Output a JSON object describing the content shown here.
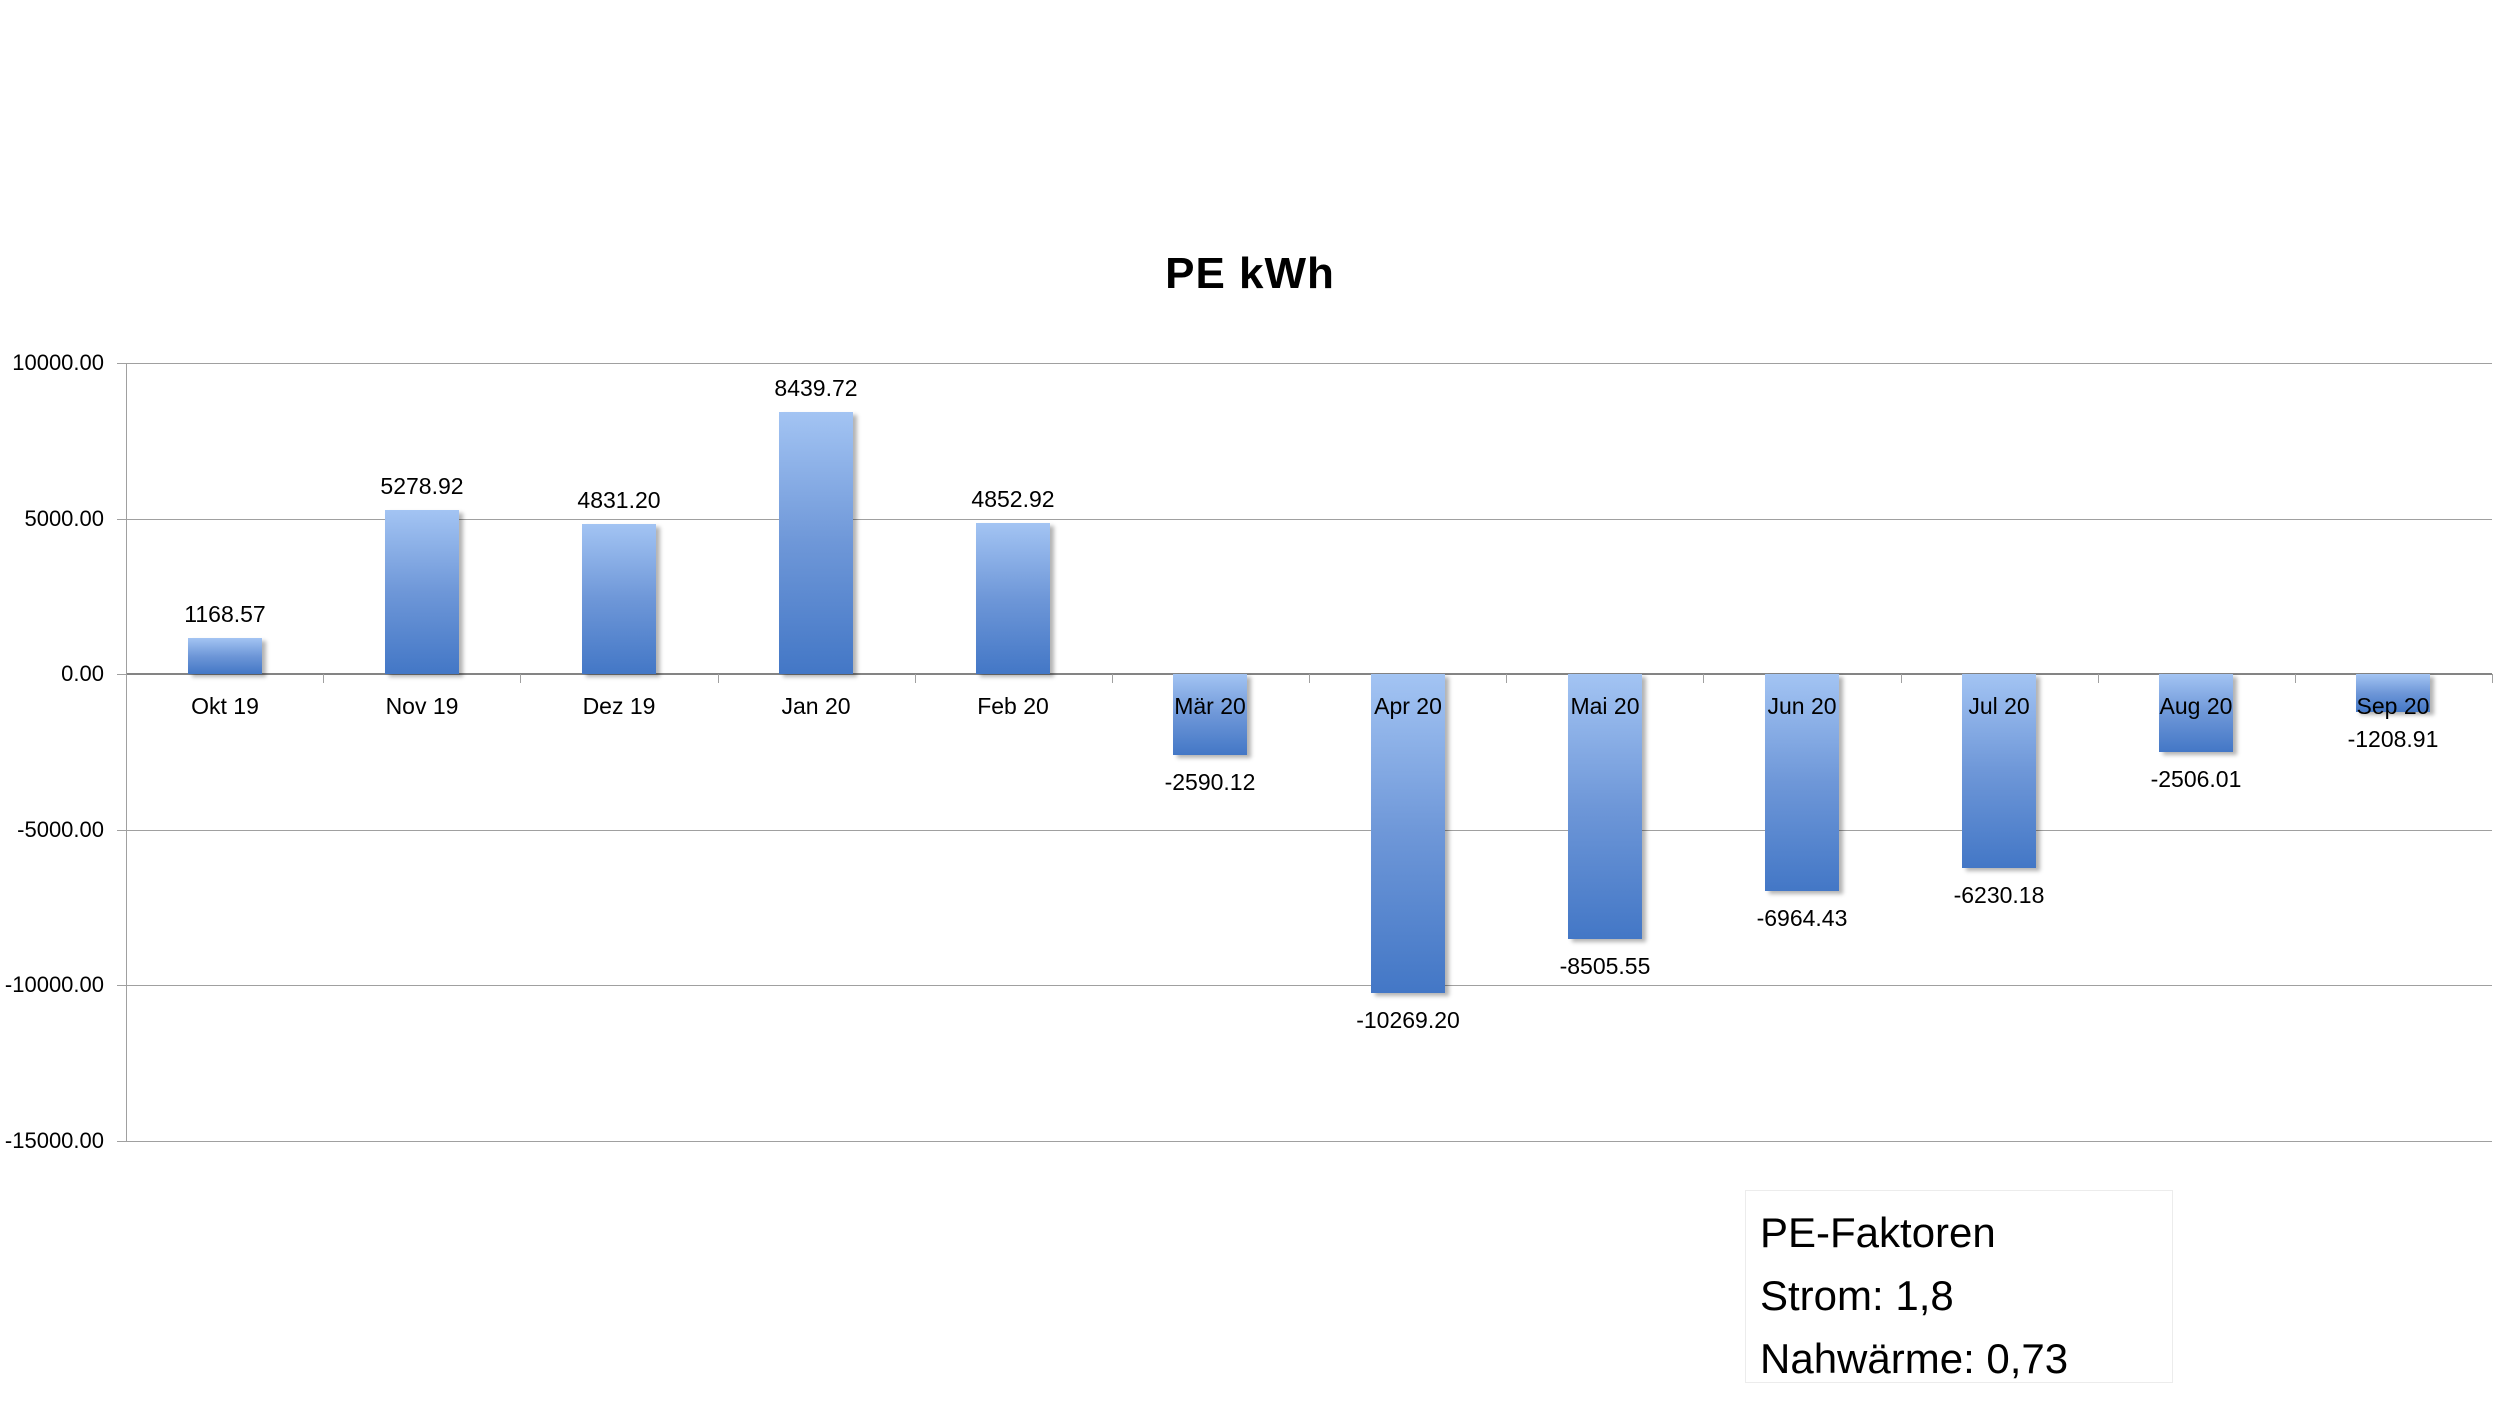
{
  "title": "PE kWh",
  "chart_data": {
    "type": "bar",
    "title": "PE kWh",
    "categories": [
      "Okt 19",
      "Nov 19",
      "Dez 19",
      "Jan 20",
      "Feb 20",
      "Mär 20",
      "Apr 20",
      "Mai 20",
      "Jun 20",
      "Jul 20",
      "Aug 20",
      "Sep 20"
    ],
    "values": [
      1168.57,
      5278.92,
      4831.2,
      8439.72,
      4852.92,
      -2590.12,
      -10269.2,
      -8505.55,
      -6964.43,
      -6230.18,
      -2506.01,
      -1208.91
    ],
    "data_labels": [
      "1168.57",
      "5278.92",
      "4831.20",
      "8439.72",
      "4852.92",
      "-2590.12",
      "-10269.20",
      "-8505.55",
      "-6964.43",
      "-6230.18",
      "-2506.01",
      "-1208.91"
    ],
    "xlabel": "",
    "ylabel": "",
    "ylim": [
      -15000,
      10000
    ],
    "ytick_step": 5000,
    "ytick_labels": [
      "10000.00",
      "5000.00",
      "0.00",
      "-5000.00",
      "-10000.00",
      "-15000.00"
    ],
    "grid": true,
    "legend": "none",
    "bar_gradient_top": "#a3c4f3",
    "bar_gradient_bottom": "#4377c6",
    "gridline_color": "#a0a0a0",
    "zero_axis_color": "#848484"
  },
  "annotation": {
    "lines": [
      "PE-Faktoren",
      "Strom: 1,8",
      "Nahwärme: 0,73"
    ]
  }
}
